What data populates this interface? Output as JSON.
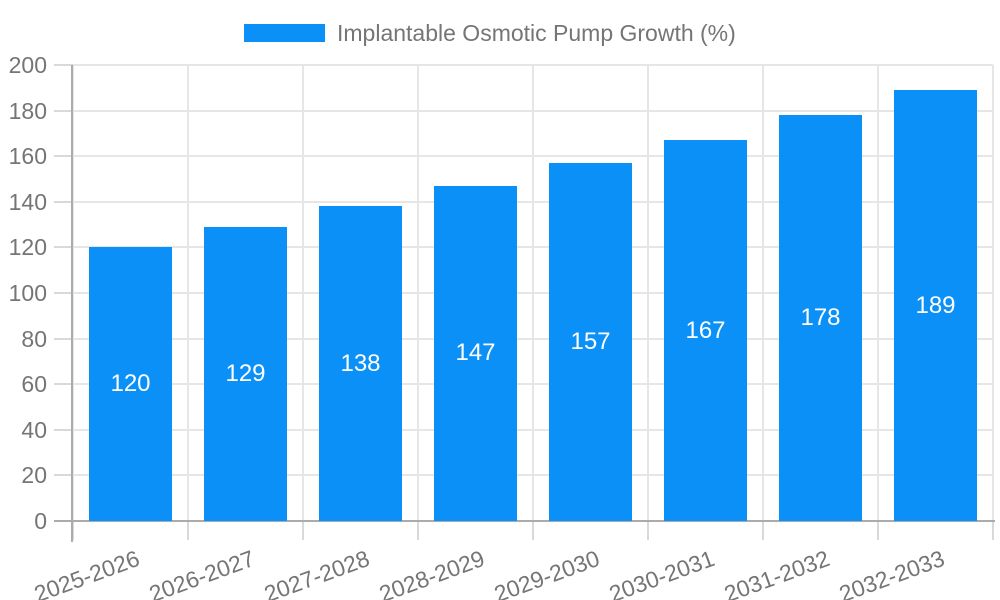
{
  "legend": {
    "label": "Implantable Osmotic Pump Growth (%)"
  },
  "colors": {
    "bar": "#0b90f8",
    "bar_label_text": "#ffffff",
    "grid_line": "#e6e6e6",
    "tick_mark": "#d9d9d9",
    "axis_line": "#ababab",
    "text": "#757575",
    "background": "#ffffff"
  },
  "chart_data": {
    "type": "bar",
    "title": "",
    "xlabel": "",
    "ylabel": "",
    "categories": [
      "2025-2026",
      "2026-2027",
      "2027-2028",
      "2028-2029",
      "2029-2030",
      "2030-2031",
      "2031-2032",
      "2032-2033"
    ],
    "series": [
      {
        "name": "Implantable Osmotic Pump Growth (%)",
        "values": [
          120,
          129,
          138,
          147,
          157,
          167,
          178,
          189
        ]
      }
    ],
    "value_labels_position": "inside-center",
    "ylim": [
      0,
      200
    ],
    "yticks": [
      0,
      20,
      40,
      60,
      80,
      100,
      120,
      140,
      160,
      180,
      200
    ],
    "grid": true,
    "legend_position": "top",
    "x_tick_rotation_deg": 20
  }
}
